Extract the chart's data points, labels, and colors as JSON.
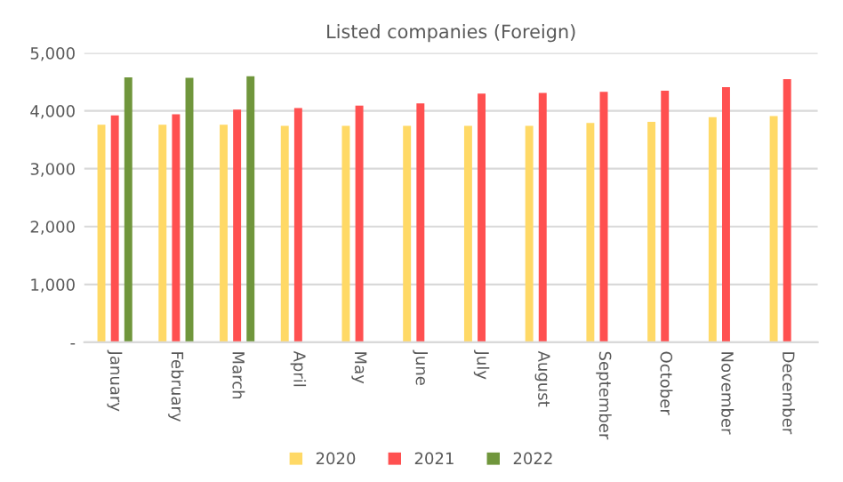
{
  "chart_data": {
    "type": "bar",
    "title": "Listed companies (Foreign)",
    "categories": [
      "January",
      "February",
      "March",
      "April",
      "May",
      "June",
      "July",
      "August",
      "September",
      "October",
      "November",
      "December"
    ],
    "series": [
      {
        "name": "2020",
        "color": "#ffd966",
        "values": [
          3760,
          3760,
          3760,
          3740,
          3740,
          3740,
          3740,
          3740,
          3790,
          3810,
          3890,
          3910
        ]
      },
      {
        "name": "2021",
        "color": "#ff5050",
        "values": [
          3920,
          3940,
          4020,
          4050,
          4090,
          4130,
          4300,
          4310,
          4330,
          4350,
          4410,
          4550
        ]
      },
      {
        "name": "2022",
        "color": "#70963c",
        "values": [
          4580,
          4570,
          4600,
          null,
          null,
          null,
          null,
          null,
          null,
          null,
          null,
          null
        ]
      }
    ],
    "ylim": [
      0,
      5000
    ],
    "yticks": [
      {
        "value": 0,
        "label": "-"
      },
      {
        "value": 1000,
        "label": "1,000"
      },
      {
        "value": 2000,
        "label": "2,000"
      },
      {
        "value": 3000,
        "label": "3,000"
      },
      {
        "value": 4000,
        "label": "4,000"
      },
      {
        "value": 5000,
        "label": "5,000"
      }
    ],
    "grid": "y",
    "legend": "bottom"
  }
}
